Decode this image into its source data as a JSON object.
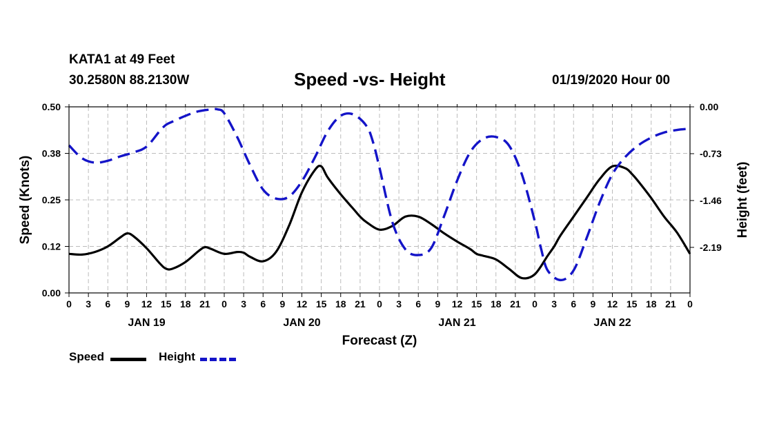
{
  "header": {
    "station": "KATA1 at 49 Feet",
    "coords": "30.2580N 88.2130W",
    "title": "Speed -vs- Height",
    "datetime": "01/19/2020 Hour 00"
  },
  "colors": {
    "speed": "#000000",
    "height": "#1414c8",
    "grid": "#bbbbbb"
  },
  "legend": {
    "speed_label": "Speed",
    "height_label": "Height"
  },
  "chart_data": {
    "type": "line",
    "title": "Speed -vs- Height",
    "xlabel": "Forecast (Z)",
    "ylabel_left": "Speed (Knots)",
    "ylabel_right": "Height (feet)",
    "xlim": [
      0,
      96
    ],
    "ylim_left": [
      0,
      0.5
    ],
    "ylim_right": [
      -2.9,
      0.0
    ],
    "yticks_left": [
      "0.00",
      "0.12",
      "0.25",
      "0.38",
      "0.50"
    ],
    "yticks_left_values": [
      0,
      0.125,
      0.25,
      0.375,
      0.5
    ],
    "yticks_right": [
      "0.00",
      "-0.73",
      "-1.46",
      "-2.19"
    ],
    "yticks_right_values": [
      0,
      -0.73,
      -1.46,
      -2.19
    ],
    "xtick_labels": [
      "0",
      "3",
      "6",
      "9",
      "12",
      "15",
      "18",
      "21",
      "0",
      "3",
      "6",
      "9",
      "12",
      "15",
      "18",
      "21",
      "0",
      "3",
      "6",
      "9",
      "12",
      "15",
      "18",
      "21",
      "0",
      "3",
      "6",
      "9",
      "12",
      "15",
      "18",
      "21",
      "0"
    ],
    "day_labels": [
      {
        "label": "JAN 19",
        "hour": 12
      },
      {
        "label": "JAN 20",
        "hour": 36
      },
      {
        "label": "JAN 21",
        "hour": 60
      },
      {
        "label": "JAN 22",
        "hour": 84
      }
    ],
    "grid": true,
    "series": [
      {
        "name": "Speed",
        "axis": "left",
        "style": "solid",
        "x": [
          0,
          2,
          4,
          6,
          8,
          9,
          10,
          12,
          14,
          15,
          16,
          18,
          20,
          21,
          22,
          24,
          26,
          27,
          28,
          30,
          32,
          34,
          36,
          38,
          39,
          40,
          42,
          44,
          45,
          46,
          48,
          50,
          52,
          54,
          56,
          58,
          60,
          62,
          63,
          64,
          66,
          68,
          70,
          72,
          74,
          75,
          76,
          78,
          80,
          82,
          84,
          86,
          87,
          88,
          90,
          92,
          94,
          96
        ],
        "values": [
          0.105,
          0.103,
          0.11,
          0.125,
          0.15,
          0.16,
          0.152,
          0.12,
          0.08,
          0.065,
          0.065,
          0.083,
          0.112,
          0.123,
          0.118,
          0.105,
          0.11,
          0.108,
          0.097,
          0.085,
          0.11,
          0.18,
          0.27,
          0.33,
          0.34,
          0.31,
          0.265,
          0.225,
          0.205,
          0.19,
          0.17,
          0.18,
          0.205,
          0.205,
          0.185,
          0.16,
          0.138,
          0.118,
          0.105,
          0.1,
          0.09,
          0.065,
          0.04,
          0.05,
          0.1,
          0.125,
          0.155,
          0.205,
          0.255,
          0.305,
          0.34,
          0.335,
          0.32,
          0.3,
          0.255,
          0.205,
          0.162,
          0.105
        ]
      },
      {
        "name": "Height",
        "axis": "right",
        "style": "dashed",
        "x": [
          0,
          2,
          4,
          6,
          8,
          10,
          12,
          14,
          15,
          16,
          18,
          20,
          22,
          23,
          24,
          26,
          28,
          30,
          32,
          34,
          36,
          38,
          40,
          42,
          44,
          46,
          47,
          48,
          50,
          52,
          54,
          56,
          58,
          60,
          62,
          64,
          66,
          68,
          70,
          72,
          73,
          74,
          76,
          78,
          80,
          82,
          84,
          86,
          88,
          90,
          92,
          94,
          96
        ],
        "values": [
          -0.6,
          -0.8,
          -0.87,
          -0.84,
          -0.77,
          -0.71,
          -0.62,
          -0.38,
          -0.28,
          -0.23,
          -0.14,
          -0.07,
          -0.04,
          -0.04,
          -0.1,
          -0.47,
          -0.91,
          -1.29,
          -1.43,
          -1.4,
          -1.16,
          -0.79,
          -0.38,
          -0.14,
          -0.12,
          -0.3,
          -0.55,
          -0.95,
          -1.8,
          -2.22,
          -2.31,
          -2.2,
          -1.7,
          -1.15,
          -0.71,
          -0.5,
          -0.47,
          -0.6,
          -1.05,
          -1.78,
          -2.22,
          -2.55,
          -2.7,
          -2.55,
          -2.05,
          -1.5,
          -1.05,
          -0.78,
          -0.6,
          -0.48,
          -0.4,
          -0.36,
          -0.34
        ]
      }
    ]
  }
}
